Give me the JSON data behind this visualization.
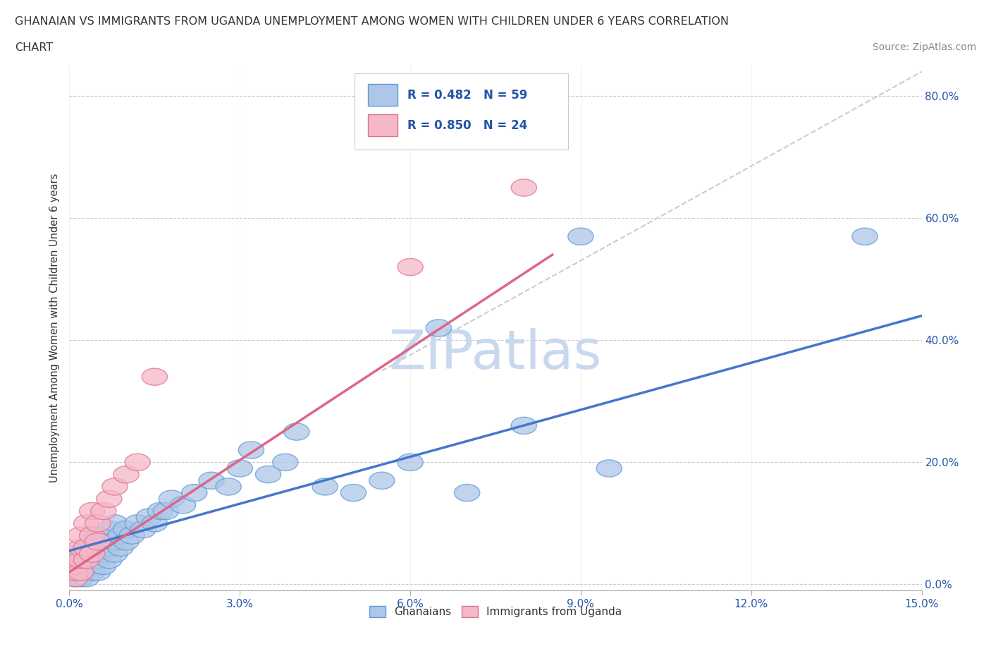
{
  "title_line1": "GHANAIAN VS IMMIGRANTS FROM UGANDA UNEMPLOYMENT AMONG WOMEN WITH CHILDREN UNDER 6 YEARS CORRELATION",
  "title_line2": "CHART",
  "source": "Source: ZipAtlas.com",
  "ylabel": "Unemployment Among Women with Children Under 6 years",
  "xlim": [
    0.0,
    0.15
  ],
  "ylim": [
    -0.01,
    0.85
  ],
  "xtick_vals": [
    0.0,
    0.03,
    0.06,
    0.09,
    0.12,
    0.15
  ],
  "xtick_labels": [
    "0.0%",
    "3.0%",
    "6.0%",
    "9.0%",
    "12.0%",
    "15.0%"
  ],
  "ytick_vals": [
    0.0,
    0.2,
    0.4,
    0.6,
    0.8
  ],
  "ytick_labels": [
    "0.0%",
    "20.0%",
    "40.0%",
    "60.0%",
    "80.0%"
  ],
  "ghanaian_color_face": "#aec6e8",
  "ghanaian_color_edge": "#5b9bd5",
  "uganda_color_face": "#f4b8c8",
  "uganda_color_edge": "#e07090",
  "legend_text_color": "#2255aa",
  "watermark": "ZIPatlas",
  "watermark_color": "#c8d8ee",
  "ghanaian_line_color": "#4477cc",
  "uganda_line_color": "#dd6688",
  "dashed_line_color": "#cccccc",
  "ghanaian_R": 0.482,
  "ghanaian_N": 59,
  "uganda_R": 0.85,
  "uganda_N": 24,
  "ghanaian_line_x": [
    0.0,
    0.15
  ],
  "ghanaian_line_y": [
    0.055,
    0.44
  ],
  "uganda_line_x": [
    0.0,
    0.085
  ],
  "uganda_line_y": [
    0.02,
    0.54
  ],
  "dashed_line_x": [
    0.055,
    0.15
  ],
  "dashed_line_y": [
    0.35,
    0.84
  ],
  "ghanaian_scatter_x": [
    0.001,
    0.001,
    0.001,
    0.002,
    0.002,
    0.002,
    0.002,
    0.003,
    0.003,
    0.003,
    0.003,
    0.004,
    0.004,
    0.004,
    0.004,
    0.005,
    0.005,
    0.005,
    0.005,
    0.006,
    0.006,
    0.006,
    0.007,
    0.007,
    0.007,
    0.008,
    0.008,
    0.008,
    0.009,
    0.009,
    0.01,
    0.01,
    0.011,
    0.012,
    0.013,
    0.014,
    0.015,
    0.016,
    0.017,
    0.018,
    0.02,
    0.022,
    0.025,
    0.028,
    0.03,
    0.032,
    0.035,
    0.038,
    0.04,
    0.045,
    0.05,
    0.055,
    0.06,
    0.065,
    0.07,
    0.08,
    0.09,
    0.095,
    0.14
  ],
  "ghanaian_scatter_y": [
    0.01,
    0.02,
    0.03,
    0.01,
    0.02,
    0.04,
    0.05,
    0.01,
    0.03,
    0.04,
    0.06,
    0.02,
    0.03,
    0.05,
    0.07,
    0.02,
    0.04,
    0.06,
    0.08,
    0.03,
    0.05,
    0.07,
    0.04,
    0.06,
    0.09,
    0.05,
    0.07,
    0.1,
    0.06,
    0.08,
    0.07,
    0.09,
    0.08,
    0.1,
    0.09,
    0.11,
    0.1,
    0.12,
    0.12,
    0.14,
    0.13,
    0.15,
    0.17,
    0.16,
    0.19,
    0.22,
    0.18,
    0.2,
    0.25,
    0.16,
    0.15,
    0.17,
    0.2,
    0.42,
    0.15,
    0.26,
    0.57,
    0.19,
    0.57
  ],
  "uganda_scatter_x": [
    0.001,
    0.001,
    0.001,
    0.001,
    0.002,
    0.002,
    0.002,
    0.002,
    0.003,
    0.003,
    0.003,
    0.004,
    0.004,
    0.004,
    0.005,
    0.005,
    0.006,
    0.007,
    0.008,
    0.01,
    0.012,
    0.015,
    0.06,
    0.08
  ],
  "uganda_scatter_y": [
    0.01,
    0.02,
    0.03,
    0.05,
    0.02,
    0.04,
    0.06,
    0.08,
    0.04,
    0.06,
    0.1,
    0.05,
    0.08,
    0.12,
    0.07,
    0.1,
    0.12,
    0.14,
    0.16,
    0.18,
    0.2,
    0.34,
    0.52,
    0.65
  ]
}
